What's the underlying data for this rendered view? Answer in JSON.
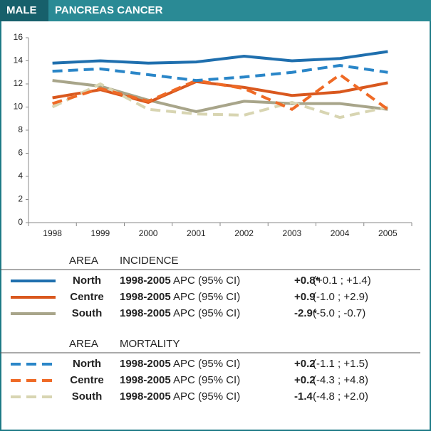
{
  "header": {
    "sex": "MALE",
    "title": "PANCREAS CANCER"
  },
  "chart_data": {
    "type": "line",
    "categories": [
      "1998",
      "1999",
      "2000",
      "2001",
      "2002",
      "2003",
      "2004",
      "2005"
    ],
    "ylim": [
      0,
      16
    ],
    "yticks": [
      0,
      2,
      4,
      6,
      8,
      10,
      12,
      14,
      16
    ],
    "grid": false,
    "series": [
      {
        "name": "North",
        "color": "#1f6fae",
        "dashed": false,
        "values": [
          13.8,
          14.0,
          13.8,
          13.9,
          14.4,
          14.0,
          14.2,
          14.8
        ]
      },
      {
        "name": "Centre",
        "color": "#d9581e",
        "dashed": false,
        "values": [
          10.8,
          11.5,
          10.4,
          12.2,
          11.7,
          11.0,
          11.3,
          12.1
        ]
      },
      {
        "name": "South",
        "color": "#a8a58a",
        "dashed": false,
        "values": [
          12.3,
          11.8,
          10.6,
          9.6,
          10.5,
          10.3,
          10.3,
          9.8
        ]
      },
      {
        "name": "North",
        "color": "#2a86c8",
        "dashed": true,
        "values": [
          13.1,
          13.3,
          12.8,
          12.3,
          12.6,
          13.0,
          13.6,
          13.0
        ]
      },
      {
        "name": "Centre",
        "color": "#ef6a26",
        "dashed": true,
        "values": [
          10.3,
          11.6,
          10.5,
          12.3,
          11.6,
          9.8,
          12.8,
          9.8
        ]
      },
      {
        "name": "South",
        "color": "#d8d5b2",
        "dashed": true,
        "values": [
          10.0,
          12.0,
          9.8,
          9.4,
          9.3,
          10.4,
          9.1,
          10.0
        ]
      }
    ]
  },
  "legend": {
    "sections": [
      {
        "area_header": "AREA",
        "title": "INCIDENCE",
        "rows": [
          {
            "period": "1998-2005",
            "measure": "APC (95% CI)",
            "apc": "+0.8*",
            "ci": "(+0.1 ; +1.4)"
          },
          {
            "period": "1998-2005",
            "measure": "APC (95% CI)",
            "apc": "+0.9",
            "ci": "(-1.0 ; +2.9)"
          },
          {
            "period": "1998-2005",
            "measure": "APC (95% CI)",
            "apc": "-2.9*",
            "ci": "(-5.0 ; -0.7)"
          }
        ]
      },
      {
        "area_header": "AREA",
        "title": "MORTALITY",
        "rows": [
          {
            "period": "1998-2005",
            "measure": "APC (95% CI)",
            "apc": "+0.2",
            "ci": "(-1.1 ; +1.5)"
          },
          {
            "period": "1998-2005",
            "measure": "APC (95% CI)",
            "apc": "+0.2",
            "ci": "(-4.3 ; +4.8)"
          },
          {
            "period": "1998-2005",
            "measure": "APC (95% CI)",
            "apc": "-1.4",
            "ci": "(-4.8 ; +2.0)"
          }
        ]
      }
    ]
  }
}
